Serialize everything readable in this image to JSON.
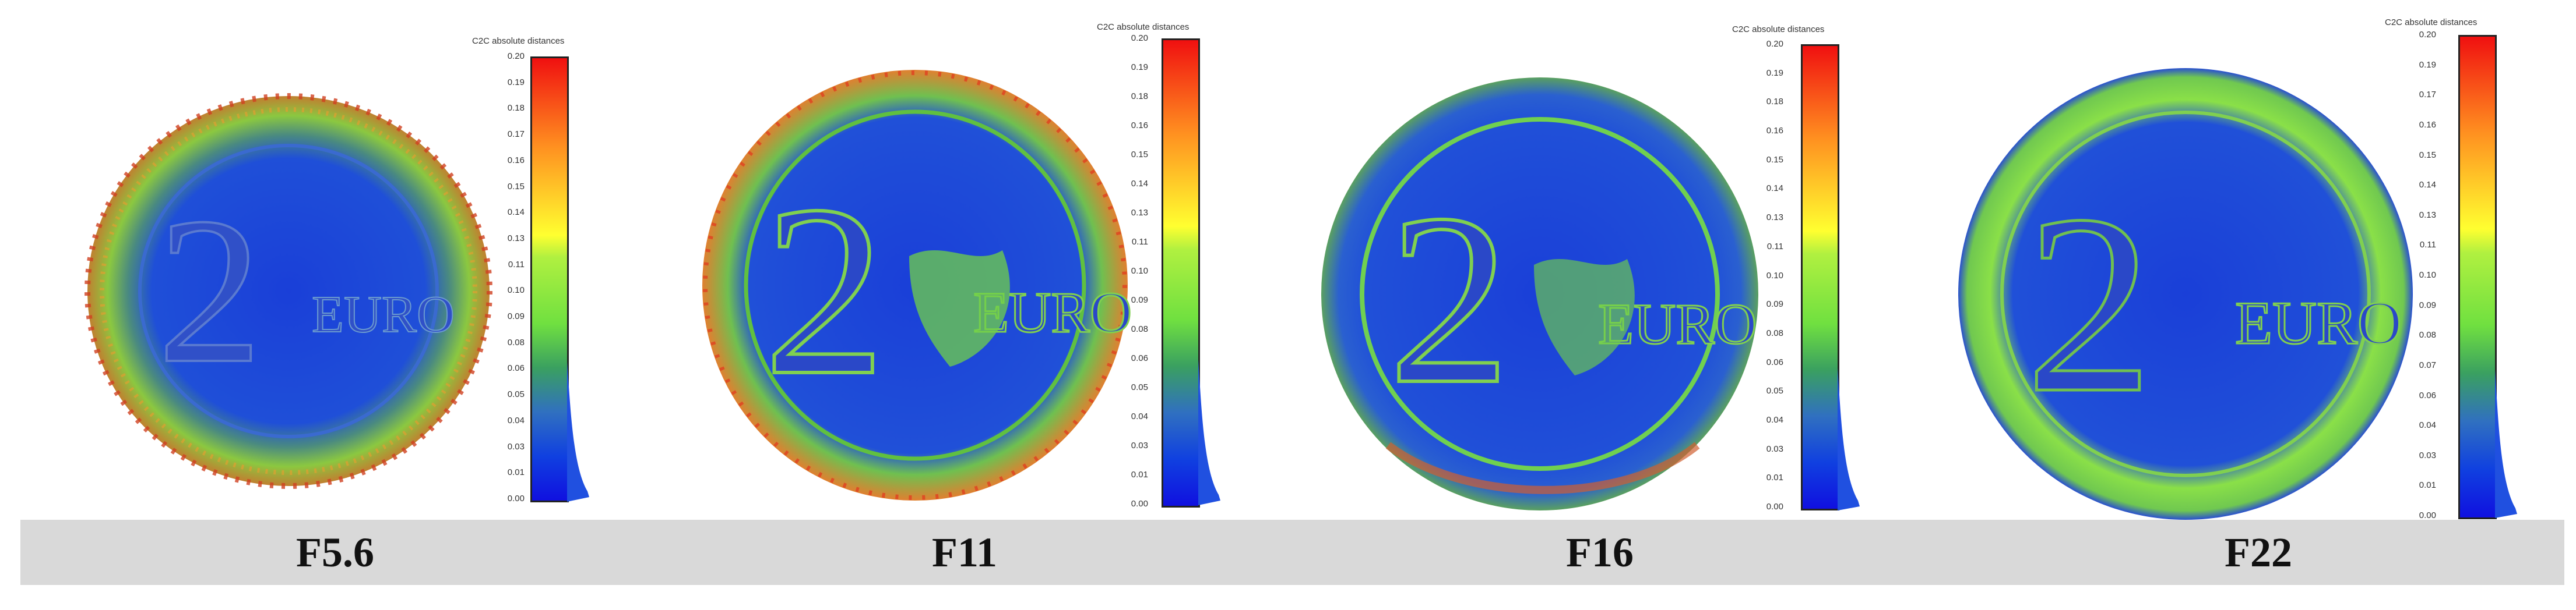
{
  "panels": [
    {
      "label": "F5.6",
      "scale_title": "C2C absolute distances",
      "ticks": [
        "0.20",
        "0.19",
        "0.18",
        "0.17",
        "0.16",
        "0.15",
        "0.14",
        "0.13",
        "0.11",
        "0.10",
        "0.09",
        "0.08",
        "0.06",
        "0.05",
        "0.04",
        "0.03",
        "0.01",
        "0.00"
      ]
    },
    {
      "label": "F11",
      "scale_title": "C2C absolute distances",
      "ticks": [
        "0.20",
        "0.19",
        "0.18",
        "0.16",
        "0.15",
        "0.14",
        "0.13",
        "0.11",
        "0.10",
        "0.09",
        "0.08",
        "0.06",
        "0.05",
        "0.04",
        "0.03",
        "0.01",
        "0.00"
      ]
    },
    {
      "label": "F16",
      "scale_title": "C2C absolute distances",
      "ticks": [
        "0.20",
        "0.19",
        "0.18",
        "0.16",
        "0.15",
        "0.14",
        "0.13",
        "0.11",
        "0.10",
        "0.09",
        "0.08",
        "0.06",
        "0.05",
        "0.04",
        "0.03",
        "0.01",
        "0.00"
      ]
    },
    {
      "label": "F22",
      "scale_title": "C2C absolute distances",
      "ticks": [
        "0.20",
        "0.19",
        "0.17",
        "0.16",
        "0.15",
        "0.14",
        "0.13",
        "0.11",
        "0.10",
        "0.09",
        "0.08",
        "0.07",
        "0.06",
        "0.04",
        "0.03",
        "0.01",
        "0.00"
      ]
    }
  ],
  "coin_text": {
    "numeral": "2",
    "currency": "EURO"
  },
  "colors": {
    "blue": "#1a3fd8",
    "green": "#6fe04a",
    "red": "#e03a1a",
    "band": "#d9d9d9"
  }
}
